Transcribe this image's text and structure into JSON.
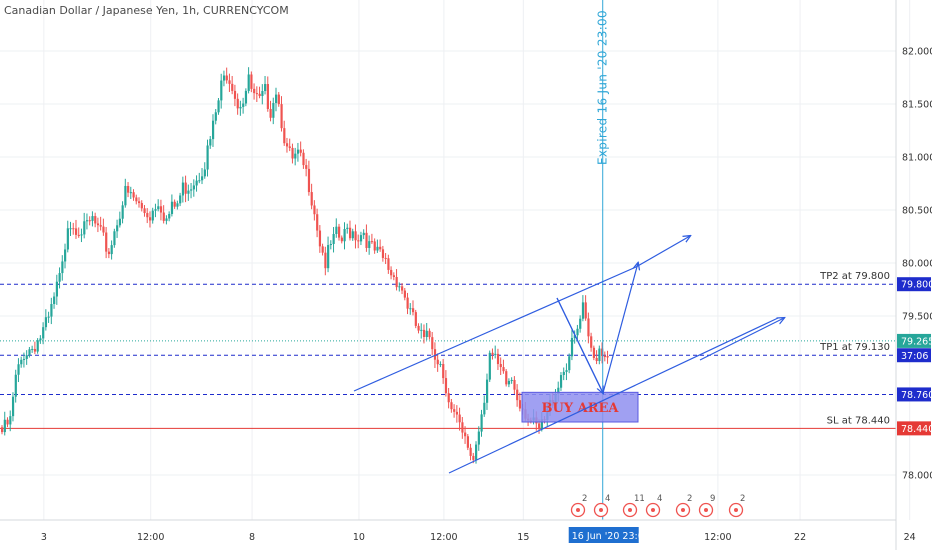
{
  "header": {
    "title": "Canadian Dollar / Japanese Yen, 1h, CURRENCYCOM"
  },
  "colors": {
    "up": "#26a69a",
    "down": "#ef5350",
    "level": "#1e2ccc",
    "sl": "#e53935",
    "last": "#26a69a",
    "vline": "#30a7d7",
    "buyFill": "#8f8ff0",
    "channel": "#2f5de0"
  },
  "chart_data": {
    "type": "candlestick",
    "title": "Canadian Dollar / Japanese Yen, 1h, CURRENCYCOM",
    "ylim": [
      77.5,
      82.3
    ],
    "x_ticks": [
      {
        "label": "3",
        "x": 16
      },
      {
        "label": "12:00",
        "x": 55
      },
      {
        "label": "8",
        "x": 92
      },
      {
        "label": "10",
        "x": 131
      },
      {
        "label": "12:00",
        "x": 162
      },
      {
        "label": "15",
        "x": 191
      },
      {
        "label": "12:00",
        "x": 262
      },
      {
        "label": "22",
        "x": 292
      },
      {
        "label": "24",
        "x": 332
      }
    ],
    "y_ticks": [
      82.0,
      81.5,
      81.0,
      80.5,
      80.0,
      79.5,
      78.0
    ],
    "levels": [
      {
        "label": "TP2 at 79.800",
        "value": 79.8,
        "axis_label": "79.800",
        "style": "dashed",
        "color_key": "level"
      },
      {
        "label": "TP1 at 79.130",
        "value": 79.13,
        "axis_label": "79.130",
        "style": "dashed",
        "color_key": "level"
      },
      {
        "label": "",
        "value": 78.76,
        "axis_label": "78.760",
        "style": "dashed",
        "color_key": "level"
      },
      {
        "label": "SL at 78.440",
        "value": 78.44,
        "axis_label": "78.440",
        "style": "solid",
        "color_key": "sl"
      }
    ],
    "last_price": {
      "value": 79.265,
      "label": "79.265",
      "countdown": "37:06"
    },
    "expiry": {
      "label": "Expired 16 Jun '20 23:00",
      "x": 228,
      "date_label": "16 Jun '20",
      "time_label": "23:00"
    },
    "buy_area": {
      "label": "BUY AREA",
      "x0": 199,
      "x1": 243,
      "y0": 78.5,
      "y1": 78.78
    },
    "channel_lines": [
      {
        "x0": 135,
        "y0": 78.81,
        "x1": 243,
        "y1": 79.97
      },
      {
        "x0": 171,
        "y0": 78.03,
        "x1": 298,
        "y1": 79.52
      }
    ],
    "arrows": [
      {
        "x0": 243,
        "y0": 79.97,
        "x1": 262,
        "y1": 80.23
      },
      {
        "x0": 243,
        "y0": 78.5,
        "x1": 298,
        "y1": 79.52
      },
      {
        "x0": 212,
        "y0": 79.67,
        "x1": 228,
        "y1": 78.8
      },
      {
        "x0": 228,
        "y0": 78.8,
        "x1": 242,
        "y1": 80.0
      }
    ],
    "events": [
      {
        "x": 219,
        "count": "2"
      },
      {
        "x": 228,
        "count": "4"
      },
      {
        "x": 240,
        "count": "11"
      },
      {
        "x": 249,
        "count": "4"
      },
      {
        "x": 258,
        "count": "2"
      },
      {
        "x": 268,
        "count": "9"
      },
      {
        "x": 279,
        "count": "2"
      }
    ],
    "candles_close_path": [
      [
        0,
        78.45
      ],
      [
        3,
        78.55
      ],
      [
        5,
        78.95
      ],
      [
        8,
        79.2
      ],
      [
        11,
        79.25
      ],
      [
        14,
        79.35
      ],
      [
        17,
        79.5
      ],
      [
        20,
        79.8
      ],
      [
        22,
        80.0
      ],
      [
        24,
        80.45
      ],
      [
        27,
        80.4
      ],
      [
        30,
        80.35
      ],
      [
        33,
        80.45
      ],
      [
        36,
        80.3
      ],
      [
        39,
        80.15
      ],
      [
        42,
        80.45
      ],
      [
        45,
        80.7
      ],
      [
        48,
        80.65
      ],
      [
        51,
        80.55
      ],
      [
        54,
        80.5
      ],
      [
        57,
        80.65
      ],
      [
        60,
        80.45
      ],
      [
        62,
        80.55
      ],
      [
        64,
        80.6
      ],
      [
        66,
        80.75
      ],
      [
        69,
        80.8
      ],
      [
        72,
        80.9
      ],
      [
        74,
        81.0
      ],
      [
        76,
        81.2
      ],
      [
        78,
        81.45
      ],
      [
        80,
        81.7
      ],
      [
        82,
        81.85
      ],
      [
        84,
        81.75
      ],
      [
        86,
        81.55
      ],
      [
        88,
        81.6
      ],
      [
        90,
        81.75
      ],
      [
        92,
        81.6
      ],
      [
        94,
        81.55
      ],
      [
        96,
        81.65
      ],
      [
        98,
        81.5
      ],
      [
        100,
        81.7
      ],
      [
        102,
        81.4
      ],
      [
        104,
        81.1
      ],
      [
        106,
        81.0
      ],
      [
        108,
        81.05
      ],
      [
        110,
        80.95
      ],
      [
        112,
        80.8
      ],
      [
        114,
        80.55
      ],
      [
        116,
        80.25
      ],
      [
        118,
        80.05
      ],
      [
        120,
        80.2
      ],
      [
        122,
        80.3
      ],
      [
        124,
        80.25
      ],
      [
        126,
        80.35
      ],
      [
        128,
        80.35
      ],
      [
        130,
        80.3
      ],
      [
        132,
        80.35
      ],
      [
        134,
        80.2
      ],
      [
        136,
        80.15
      ],
      [
        138,
        80.1
      ],
      [
        140,
        80.05
      ],
      [
        142,
        79.95
      ],
      [
        144,
        79.9
      ],
      [
        146,
        79.8
      ],
      [
        148,
        79.65
      ],
      [
        150,
        79.5
      ],
      [
        152,
        79.4
      ],
      [
        154,
        79.3
      ],
      [
        156,
        79.35
      ],
      [
        158,
        79.2
      ],
      [
        160,
        79.1
      ],
      [
        162,
        78.9
      ],
      [
        164,
        78.65
      ],
      [
        166,
        78.55
      ],
      [
        168,
        78.4
      ],
      [
        170,
        78.3
      ],
      [
        172,
        78.2
      ],
      [
        174,
        78.5
      ],
      [
        176,
        78.8
      ],
      [
        178,
        79.2
      ],
      [
        180,
        79.1
      ],
      [
        182,
        79.0
      ],
      [
        184,
        78.9
      ],
      [
        186,
        78.95
      ],
      [
        188,
        78.8
      ],
      [
        190,
        78.7
      ],
      [
        192,
        78.6
      ],
      [
        194,
        78.5
      ],
      [
        196,
        78.45
      ],
      [
        198,
        78.55
      ],
      [
        200,
        78.7
      ],
      [
        202,
        78.85
      ],
      [
        204,
        79.0
      ],
      [
        206,
        79.1
      ],
      [
        208,
        79.25
      ],
      [
        210,
        79.4
      ],
      [
        212,
        79.6
      ],
      [
        214,
        79.3
      ],
      [
        216,
        79.15
      ],
      [
        218,
        79.25
      ],
      [
        220,
        79.2
      ]
    ]
  }
}
